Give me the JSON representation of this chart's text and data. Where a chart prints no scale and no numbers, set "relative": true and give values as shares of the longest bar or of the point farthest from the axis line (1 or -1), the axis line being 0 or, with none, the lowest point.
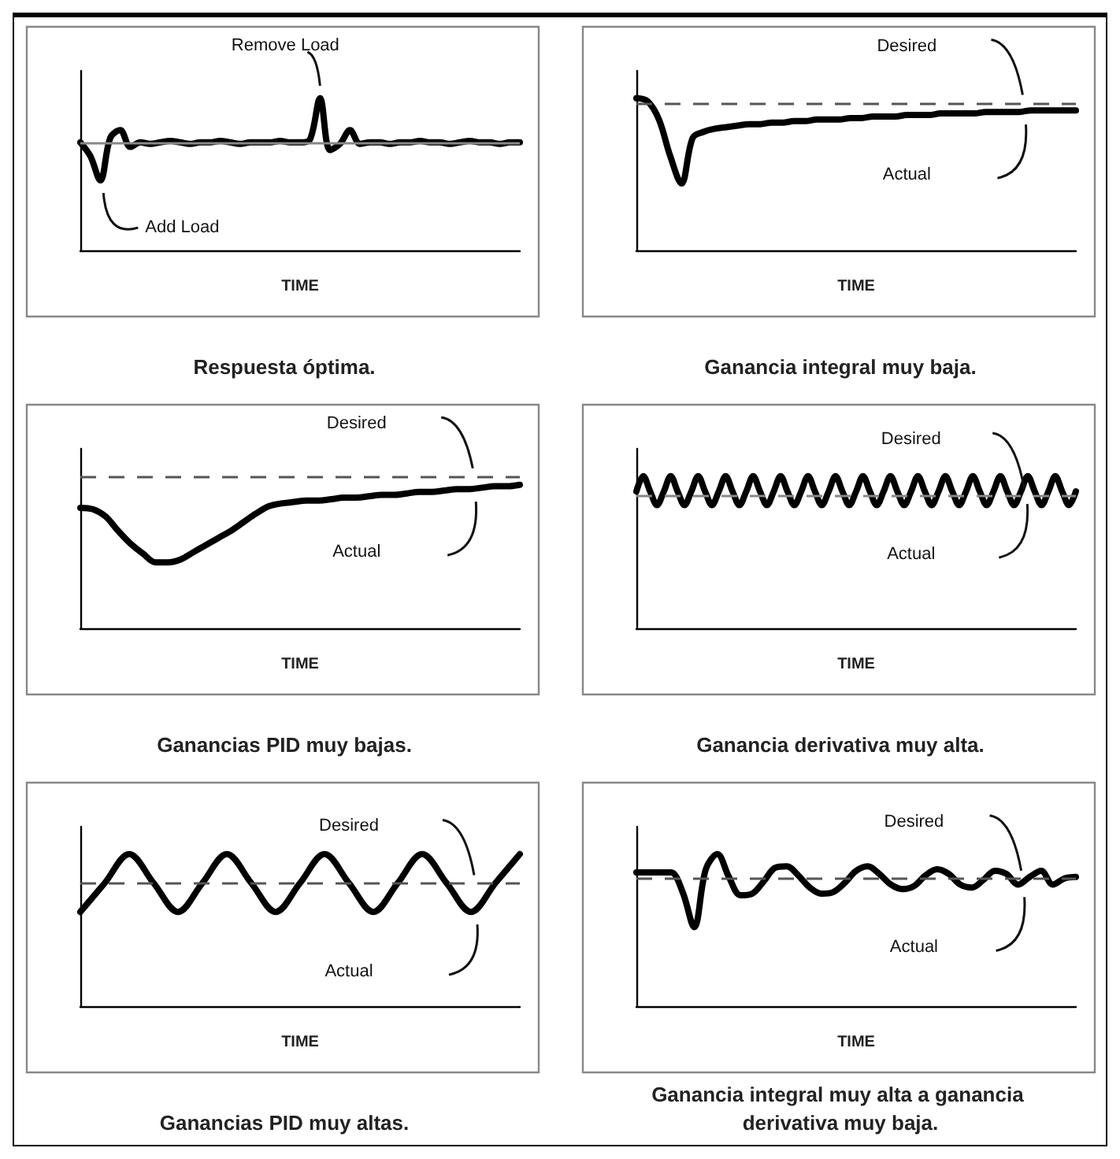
{
  "chart_data": [
    {
      "type": "line",
      "title": "Respuesta óptima.",
      "xlabel": "TIME",
      "relative": true,
      "categories": [
        null,
        null,
        null,
        null,
        null,
        null,
        null,
        null,
        null,
        null,
        null,
        null,
        null,
        null,
        null,
        null,
        null,
        null,
        null,
        null,
        null,
        null,
        null,
        null,
        null,
        null,
        null,
        null,
        null,
        null,
        null,
        null,
        null,
        null,
        null,
        null,
        null,
        null,
        null,
        null,
        null,
        null,
        null,
        null,
        null
      ],
      "series": [
        {
          "color": "#000000",
          "values": [
            0.71,
            0.62,
            0.46,
            0.74,
            0.79,
            0.68,
            0.71,
            0.7,
            0.71,
            0.72,
            0.71,
            0.7,
            0.71,
            0.71,
            0.72,
            0.71,
            0.7,
            0.71,
            0.71,
            0.71,
            0.72,
            0.71,
            0.71,
            0.73,
            1,
            0.66,
            0.7,
            0.79,
            0.7,
            0.71,
            0.71,
            0.7,
            0.71,
            0.71,
            0.72,
            0.71,
            0.71,
            0.7,
            0.71,
            0.72,
            0.71,
            0.71,
            0.7,
            0.71,
            0.71
          ]
        }
      ],
      "ref_lines": [
        {
          "axis": "y",
          "value": 0.71,
          "color": "#888888",
          "line_style": "solid"
        }
      ],
      "annotations": [
        "Remove Load",
        "Add Load"
      ]
    },
    {
      "type": "line",
      "title": "Ganancia integral muy baja.",
      "xlabel": "TIME",
      "relative": true,
      "categories": [
        null,
        null,
        null,
        null,
        null,
        null,
        null,
        null,
        null,
        null,
        null,
        null,
        null,
        null,
        null,
        null,
        null,
        null,
        null,
        null,
        null,
        null,
        null,
        null,
        null,
        null,
        null,
        null,
        null,
        null,
        null,
        null,
        null,
        null,
        null,
        null,
        null,
        null,
        null,
        null
      ],
      "series": [
        {
          "name": "Actual",
          "color": "#000000",
          "values": [
            1.0,
            0.98,
            0.86,
            0.62,
            0.44,
            0.74,
            0.78,
            0.8,
            0.81,
            0.82,
            0.83,
            0.83,
            0.84,
            0.84,
            0.85,
            0.85,
            0.86,
            0.86,
            0.86,
            0.87,
            0.87,
            0.88,
            0.88,
            0.88,
            0.89,
            0.89,
            0.89,
            0.9,
            0.9,
            0.9,
            0.9,
            0.91,
            0.91,
            0.91,
            0.91,
            0.92,
            0.92,
            0.92,
            0.92,
            0.92
          ]
        }
      ],
      "ref_lines": [
        {
          "axis": "y",
          "value": 0.97,
          "label": "Desired",
          "color": "#555555",
          "line_style": "dashed"
        }
      ]
    },
    {
      "type": "line",
      "title": "Ganancias PID muy bajas.",
      "xlabel": "TIME",
      "relative": true,
      "categories": [
        null,
        null,
        null,
        null,
        null,
        null,
        null,
        null,
        null,
        null,
        null,
        null,
        null,
        null,
        null,
        null,
        null,
        null,
        null,
        null,
        null,
        null,
        null,
        null,
        null,
        null,
        null,
        null,
        null,
        null,
        null,
        null,
        null,
        null,
        null,
        null
      ],
      "series": [
        {
          "name": "Actual",
          "color": "#000000",
          "values": [
            0.84,
            0.83,
            0.78,
            0.68,
            0.59,
            0.52,
            0.46,
            0.46,
            0.48,
            0.53,
            0.58,
            0.63,
            0.68,
            0.74,
            0.8,
            0.85,
            0.87,
            0.88,
            0.89,
            0.89,
            0.9,
            0.91,
            0.91,
            0.92,
            0.93,
            0.93,
            0.94,
            0.95,
            0.95,
            0.96,
            0.97,
            0.97,
            0.98,
            0.99,
            0.99,
            1.0
          ]
        }
      ],
      "ref_lines": [
        {
          "axis": "y",
          "value": 1.06,
          "label": "Desired",
          "color": "#555555",
          "line_style": "dashed"
        }
      ]
    },
    {
      "type": "line",
      "title": "Ganancia derivativa muy alta.",
      "xlabel": "TIME",
      "relative": true,
      "categories": [
        null,
        null,
        null,
        null,
        null,
        null,
        null,
        null,
        null,
        null,
        null,
        null,
        null,
        null,
        null,
        null,
        null,
        null,
        null,
        null,
        null,
        null,
        null,
        null,
        null,
        null,
        null,
        null,
        null,
        null,
        null,
        null,
        null,
        null,
        null,
        null,
        null,
        null,
        null,
        null,
        null,
        null,
        null,
        null,
        null,
        null,
        null,
        null,
        null,
        null,
        null,
        null,
        null,
        null,
        null,
        null,
        null,
        null,
        null,
        null,
        null,
        null,
        null,
        null,
        null
      ],
      "series": [
        {
          "name": "Actual",
          "color": "#000000",
          "values": [
            0.9,
            1,
            0.9,
            0.81,
            0.9,
            1,
            0.9,
            0.81,
            0.9,
            1,
            0.9,
            0.81,
            0.9,
            1,
            0.9,
            0.81,
            0.9,
            1,
            0.9,
            0.81,
            0.9,
            1,
            0.9,
            0.81,
            0.9,
            1,
            0.9,
            0.81,
            0.9,
            1,
            0.9,
            0.81,
            0.9,
            1,
            0.9,
            0.81,
            0.9,
            1,
            0.9,
            0.81,
            0.9,
            1,
            0.9,
            0.81,
            0.9,
            1,
            0.9,
            0.81,
            0.9,
            1,
            0.9,
            0.81,
            0.9,
            1,
            0.9,
            0.81,
            0.9,
            1,
            0.9,
            0.81,
            0.9,
            1,
            0.9,
            0.81,
            0.9
          ]
        }
      ],
      "ref_lines": [
        {
          "axis": "y",
          "value": 0.87,
          "label": "Desired",
          "color": "#888888",
          "line_style": "dashed"
        }
      ]
    },
    {
      "type": "line",
      "title": "Ganancias PID muy altas.",
      "xlabel": "TIME",
      "relative": true,
      "categories": [
        null,
        null,
        null,
        null,
        null,
        null,
        null,
        null,
        null,
        null,
        null,
        null,
        null,
        null,
        null,
        null,
        null,
        null,
        null
      ],
      "series": [
        {
          "name": "Actual",
          "color": "#000000",
          "values": [
            0.62,
            0.81,
            1,
            0.81,
            0.62,
            0.81,
            1,
            0.81,
            0.62,
            0.81,
            1,
            0.81,
            0.62,
            0.81,
            1,
            0.81,
            0.62,
            0.81,
            1
          ]
        }
      ],
      "ref_lines": [
        {
          "axis": "y",
          "value": 0.81,
          "label": "Desired",
          "color": "#555555",
          "line_style": "dashed"
        }
      ]
    },
    {
      "type": "line",
      "title": "Ganancia integral muy alta a ganancia derivativa muy baja.",
      "xlabel": "TIME",
      "relative": true,
      "categories": [
        null,
        null,
        null,
        null,
        null,
        null,
        null,
        null,
        null,
        null,
        null,
        null,
        null,
        null,
        null,
        null,
        null,
        null,
        null,
        null,
        null,
        null,
        null,
        null,
        null,
        null,
        null,
        null,
        null,
        null,
        null,
        null,
        null,
        null,
        null,
        null,
        null,
        null,
        null
      ],
      "series": [
        {
          "name": "Actual",
          "color": "#000000",
          "values": [
            0.88,
            0.88,
            0.88,
            0.88,
            0.75,
            0.52,
            0.9,
            1,
            0.85,
            0.73,
            0.74,
            0.82,
            0.91,
            0.92,
            0.86,
            0.78,
            0.74,
            0.75,
            0.81,
            0.89,
            0.92,
            0.87,
            0.8,
            0.77,
            0.79,
            0.86,
            0.9,
            0.87,
            0.8,
            0.78,
            0.83,
            0.89,
            0.87,
            0.8,
            0.85,
            0.89,
            0.8,
            0.84,
            0.85
          ]
        }
      ],
      "ref_lines": [
        {
          "axis": "y",
          "value": 0.84,
          "label": "Desired",
          "color": "#555555",
          "line_style": "dashed"
        }
      ]
    }
  ]
}
